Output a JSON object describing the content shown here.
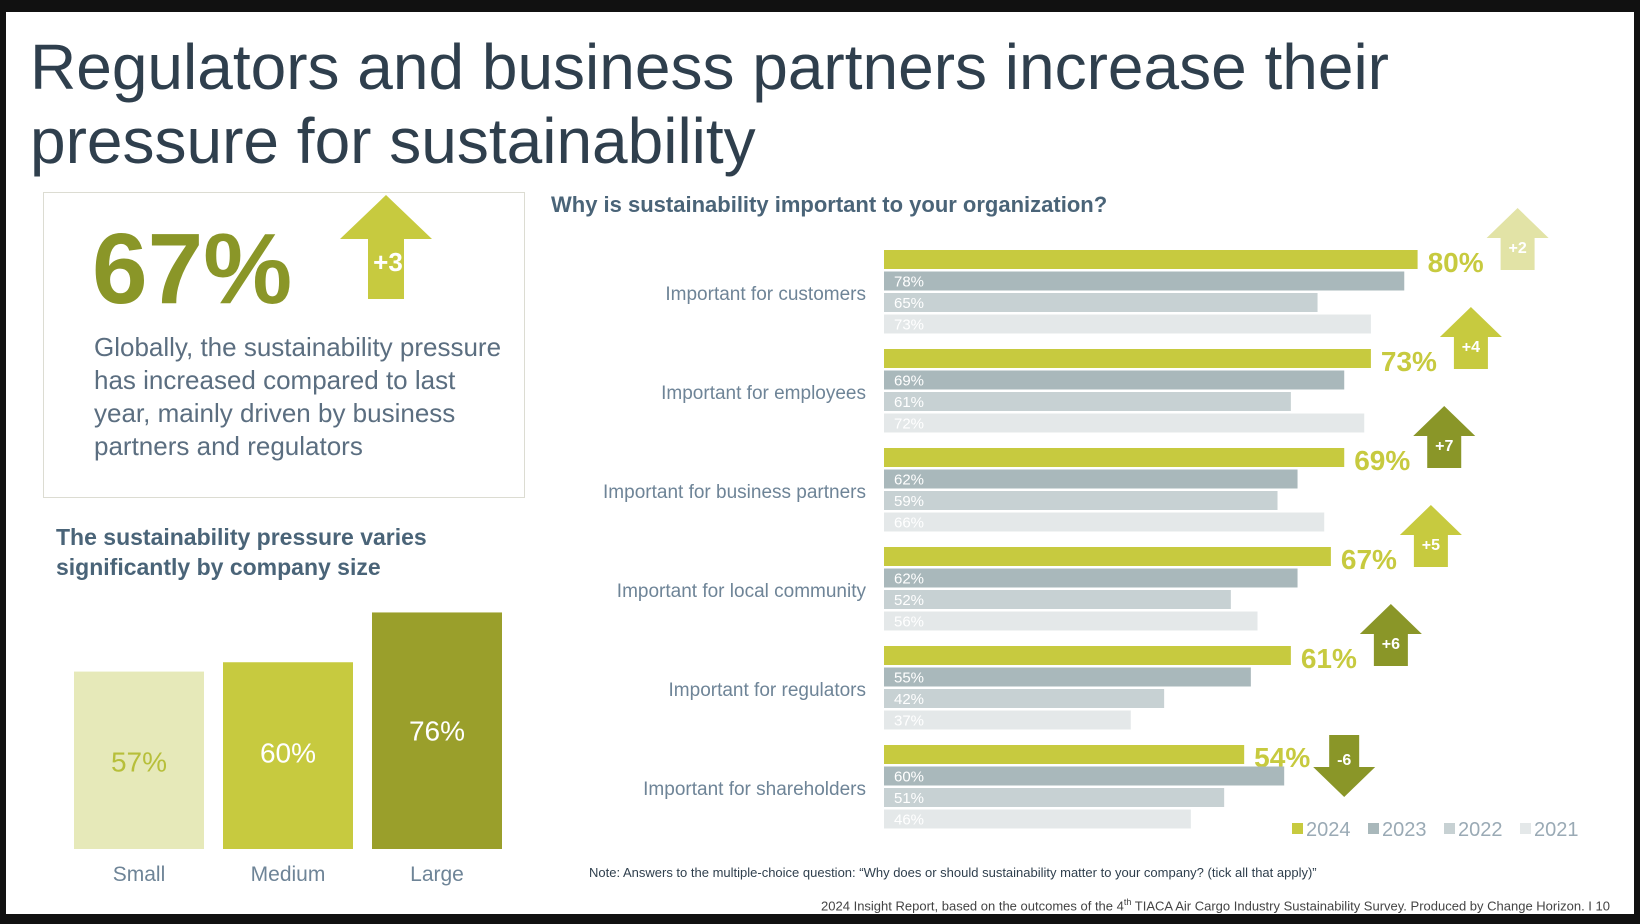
{
  "title": "Regulators and business partners increase their pressure for sustainability",
  "highlight": {
    "value": "67%",
    "change": "+3",
    "description": "Globally, the sustainability pressure has increased compared to last year, mainly driven by business partners and regulators"
  },
  "size_section": {
    "heading": "The sustainability pressure varies significantly by company size"
  },
  "chart_data": [
    {
      "type": "bar",
      "title": "The sustainability pressure varies significantly by company size",
      "categories": [
        "Small",
        "Medium",
        "Large"
      ],
      "values": [
        57,
        60,
        76
      ],
      "value_labels": [
        "57%",
        "60%",
        "76%"
      ],
      "colors": [
        "#e6e9b9",
        "#c7ca3f",
        "#9a9f2b"
      ],
      "label_colors": [
        "#b7bf3a",
        "#ffffff",
        "#ffffff"
      ],
      "ylim": [
        0,
        80
      ]
    },
    {
      "type": "bar",
      "orientation": "horizontal",
      "title": "Why is sustainability important to your organization?",
      "categories": [
        "Important for customers",
        "Important for employees",
        "Important for business partners",
        "Important for local community",
        "Important for regulators",
        "Important for shareholders"
      ],
      "series": [
        {
          "name": "2024",
          "values": [
            80,
            73,
            69,
            67,
            61,
            54
          ],
          "labels": [
            "80%",
            "73%",
            "69%",
            "67%",
            "61%",
            "54%"
          ],
          "color": "#c7ca3f"
        },
        {
          "name": "2023",
          "values": [
            78,
            69,
            62,
            62,
            55,
            60
          ],
          "labels": [
            "78%",
            "69%",
            "62%",
            "62%",
            "55%",
            "60%"
          ],
          "color": "#a9b8bb"
        },
        {
          "name": "2022",
          "values": [
            65,
            61,
            59,
            52,
            42,
            51
          ],
          "labels": [
            "65%",
            "61%",
            "59%",
            "52%",
            "42%",
            "51%"
          ],
          "color": "#c7d1d3"
        },
        {
          "name": "2021",
          "values": [
            73,
            72,
            66,
            56,
            37,
            46
          ],
          "labels": [
            "73%",
            "72%",
            "66%",
            "56%",
            "37%",
            "46%"
          ],
          "color": "#e4e8e9"
        }
      ],
      "changes": [
        {
          "label": "+2",
          "direction": "up",
          "color": "#e2e3a6"
        },
        {
          "label": "+4",
          "direction": "up",
          "color": "#c7ca3f"
        },
        {
          "label": "+7",
          "direction": "up",
          "color": "#8a9628"
        },
        {
          "label": "+5",
          "direction": "up",
          "color": "#c7ca3f"
        },
        {
          "label": "+6",
          "direction": "up",
          "color": "#8a9628"
        },
        {
          "label": "-6",
          "direction": "down",
          "color": "#8a9628"
        }
      ],
      "legend": "bottom-right",
      "xlim": [
        0,
        100
      ]
    }
  ],
  "note": "Note: Answers to the multiple-choice question: “Why does or should sustainability matter to your company? (tick all that apply)”",
  "footer": {
    "before": "2024 Insight Report, based on the outcomes of the 4",
    "sup": "th",
    "after": " TIACA Air Cargo Industry Sustainability Survey. Produced by Change Horizon. I 10"
  },
  "colors": {
    "accent": "#c7ca3f",
    "dark_olive": "#8a9628",
    "text_blue": "#4a6478",
    "title": "#2f3f4d"
  }
}
